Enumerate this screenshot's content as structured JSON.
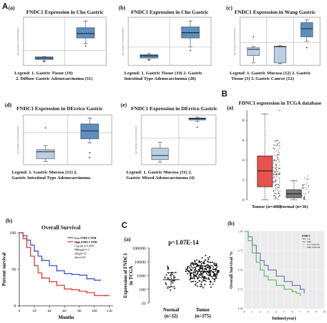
{
  "figure": {
    "A_letter": "A",
    "B_letter": "B",
    "C_letter": "C"
  },
  "oncomine_ylabel": "log2 median-centered intensity",
  "panels": {
    "a": {
      "sub": "(a)",
      "title": "FNDC1 Expression in Cho Gastric",
      "legend": [
        "Legend:  1. Gastric Tissue (19)",
        "2. Diffuse Gastric Adenocarcinoma (31)"
      ]
    },
    "b": {
      "sub": "(b)",
      "title": "FNDC1 Expression in Cho Gastric",
      "legend": [
        "Legend:  1. Gastric Tissue (19)   2. Gastric",
        "Intestinal Type Adenocarcinoma (20)"
      ]
    },
    "c": {
      "sub": "(c)",
      "title": "FNDC1 Expression in Wang Gastric",
      "legend": [
        "Legend:  1. Gastric Mucosa (12)   2. Gastric",
        "Tissue (3)   3. Gastric Cancer (12)"
      ]
    },
    "d": {
      "sub": "(d)",
      "title": "FNDC1 Expression in DErrico Gastric",
      "legend": [
        "Legend:  1. Gastric Mucosa (31)   2.",
        "Gastric Intestinal Type Adenocarcinoma"
      ]
    },
    "e": {
      "sub": "(e)",
      "title": "FNDC1 Expression in DErrico Gastric",
      "legend": [
        "Legend:  1. Gastric Mucosa (31)   2.",
        "Gastric Mixed Adenocarcinoma (4)"
      ]
    },
    "Ba": {
      "sub": "(a)",
      "title": "FDNC1 expression in TCGA database"
    },
    "Ab": {
      "sub": "(b)",
      "title": "Overall Survival",
      "xlabel": "Months",
      "ylabel": "Percent survival",
      "legend": [
        "Low FNDC1 TPM",
        "High FNDC1 TPM",
        "Logrank p=0.0058",
        "HR(high)=1.5",
        "n(high)=93",
        "n(low)=93"
      ]
    },
    "Ca": {
      "sub": "(a)",
      "annotation": "p=1.07E-14",
      "ylabel": "Expression of FNDC1 in TCGA"
    },
    "Cb": {
      "sub": "(b)",
      "xlabel": "futime(year)",
      "ylabel": "Overall Survival %",
      "legend_title": "FNDC1",
      "legend": [
        "low",
        "high",
        "low censored",
        "high censored"
      ]
    }
  },
  "colors": {
    "oncomine_box": "#5b8fbf",
    "oncomine_box_light": "#b8cfe4",
    "tcga_tumor": "#e8524d",
    "tcga_normal": "#777777",
    "km_low": "#2b3fd8",
    "km_high": "#e02222",
    "cb_low": "#4866b8",
    "cb_high": "#41b94b",
    "cb_bg": "#ebebeb"
  },
  "chart_data": [
    {
      "id": "Aa",
      "type": "box",
      "title": "FNDC1 Expression in Cho Gastric",
      "categories": [
        "1",
        "2"
      ],
      "boxes": [
        {
          "min": -1.4,
          "q1": -1.2,
          "median": -1.0,
          "q3": -0.85,
          "max": -0.8,
          "outliers": [
            -1.5
          ],
          "shade": "dark"
        },
        {
          "min": 0.9,
          "q1": 1.7,
          "median": 2.3,
          "q3": 3.1,
          "max": 4.0,
          "outliers": [
            0.6
          ],
          "shade": "dark"
        }
      ],
      "ylim": [
        -2,
        4.5
      ]
    },
    {
      "id": "Ab_oncomine",
      "type": "box",
      "title": "FNDC1 Expression in Cho Gastric",
      "categories": [
        "1",
        "2"
      ],
      "boxes": [
        {
          "min": -1.7,
          "q1": -1.5,
          "median": -1.2,
          "q3": -1.05,
          "max": -0.9,
          "outliers": [
            -1.8
          ],
          "shade": "dark"
        },
        {
          "min": 0.0,
          "q1": 1.2,
          "median": 1.9,
          "q3": 2.7,
          "max": 3.5,
          "outliers": [
            -0.5
          ],
          "shade": "dark"
        }
      ],
      "ylim": [
        -2.5,
        4
      ]
    },
    {
      "id": "Ac",
      "type": "box",
      "title": "FNDC1 Expression in Wang Gastric",
      "categories": [
        "1",
        "2",
        "3"
      ],
      "boxes": [
        {
          "min": -2.3,
          "q1": -1.5,
          "median": -0.8,
          "q3": -0.6,
          "max": -0.5,
          "outliers": [
            0.6
          ],
          "shade": "light"
        },
        {
          "min": -2.4,
          "q1": -2.3,
          "median": -0.5,
          "q3": -0.45,
          "max": -0.4,
          "outliers": [],
          "shade": "light"
        },
        {
          "min": 0.1,
          "q1": 0.6,
          "median": 1.5,
          "q3": 2.2,
          "max": 2.5,
          "outliers": [
            -0.6
          ],
          "shade": "dark"
        }
      ],
      "ylim": [
        -2.6,
        2.8
      ]
    },
    {
      "id": "Ad",
      "type": "box",
      "title": "FNDC1 Expression in DErrico Gastric",
      "categories": [
        "1",
        "2"
      ],
      "boxes": [
        {
          "min": -2.9,
          "q1": -2.6,
          "median": -1.9,
          "q3": -1.7,
          "max": -1.3,
          "outliers": [
            0.5
          ],
          "shade": "light"
        },
        {
          "min": -1.0,
          "q1": -0.6,
          "median": 0.2,
          "q3": 0.9,
          "max": 1.5,
          "outliers": [
            -2.0,
            -2.5
          ],
          "shade": "dark"
        }
      ],
      "ylim": [
        -3.2,
        1.8
      ]
    },
    {
      "id": "Ae",
      "type": "box",
      "title": "FNDC1 Expression in DErrico Gastric",
      "categories": [
        "1",
        "2"
      ],
      "boxes": [
        {
          "min": -2.9,
          "q1": -2.6,
          "median": -2.1,
          "q3": -1.2,
          "max": -0.5,
          "outliers": [],
          "shade": "light"
        },
        {
          "min": 2.0,
          "q1": 2.2,
          "median": 2.35,
          "q3": 2.45,
          "max": 2.55,
          "outliers": [
            1.3
          ],
          "shade": "dark"
        }
      ],
      "ylim": [
        -3.2,
        2.8
      ]
    },
    {
      "id": "Ba",
      "type": "box",
      "title": "FDNC1 expression in TCGA database",
      "categories": [
        "Tumor\n(n=408)",
        "Normal\n(n=36)"
      ],
      "yticks": [
        0,
        2,
        4,
        6,
        8
      ],
      "ylim": [
        0,
        9
      ],
      "boxes": [
        {
          "min": 0.0,
          "q1": 1.3,
          "median": 2.9,
          "q3": 4.4,
          "max": 8.6,
          "color": "#e8524d"
        },
        {
          "min": 0.0,
          "q1": 0.2,
          "median": 0.6,
          "q3": 1.0,
          "max": 1.9,
          "color": "#777777"
        }
      ]
    },
    {
      "id": "Ab",
      "type": "line",
      "title": "Overall Survival",
      "xlabel": "Months",
      "ylabel": "Percent survival",
      "xticks": [
        0,
        20,
        40,
        60,
        80,
        100,
        120
      ],
      "yticks": [
        0,
        50,
        100
      ],
      "xlim": [
        0,
        125
      ],
      "ylim": [
        0,
        100
      ],
      "series": [
        {
          "name": "Low FNDC1 TPM",
          "points": [
            [
              0,
              100
            ],
            [
              5,
              96
            ],
            [
              10,
              90
            ],
            [
              15,
              83
            ],
            [
              20,
              75
            ],
            [
              25,
              68
            ],
            [
              30,
              62
            ],
            [
              40,
              55
            ],
            [
              50,
              48
            ],
            [
              60,
              44
            ],
            [
              70,
              43
            ],
            [
              80,
              42
            ],
            [
              90,
              37
            ],
            [
              100,
              35
            ],
            [
              108,
              35
            ]
          ]
        },
        {
          "name": "High FNDC1 TPM",
          "points": [
            [
              0,
              100
            ],
            [
              5,
              92
            ],
            [
              10,
              80
            ],
            [
              15,
              68
            ],
            [
              20,
              55
            ],
            [
              25,
              45
            ],
            [
              30,
              38
            ],
            [
              40,
              33
            ],
            [
              50,
              28
            ],
            [
              60,
              23
            ],
            [
              70,
              22
            ],
            [
              80,
              20
            ],
            [
              90,
              18
            ],
            [
              100,
              14
            ],
            [
              115,
              14
            ],
            [
              120,
              14
            ]
          ]
        }
      ]
    },
    {
      "id": "Ca",
      "type": "scatter",
      "ylabel": "Expression of FNDC1 in TCGA",
      "annotation": "p=1.07E-14",
      "categories": [
        "Normal\n(n=32)",
        "Tumor\n(n=375)"
      ],
      "yscale": "log",
      "yticks": [
        10,
        100,
        1000,
        10000,
        100000
      ],
      "ylim": [
        10,
        100000
      ],
      "groups": [
        {
          "name": "Normal",
          "n": 32,
          "mean": 500,
          "sd_low": 150,
          "sd_high": 1600
        },
        {
          "name": "Tumor",
          "n": 375,
          "mean": 2000,
          "sd_low": 700,
          "sd_high": 5000
        }
      ]
    },
    {
      "id": "Cb",
      "type": "line",
      "xlabel": "futime(year)",
      "ylabel": "Overall Survival %",
      "xticks": [
        0,
        1,
        2,
        3,
        4,
        5,
        6,
        7,
        8,
        9,
        10
      ],
      "yticks": [
        0.0,
        0.25,
        0.5,
        0.75,
        1.0
      ],
      "xlim": [
        0,
        10
      ],
      "ylim": [
        0,
        1
      ],
      "series": [
        {
          "name": "low",
          "points": [
            [
              0,
              1
            ],
            [
              0.5,
              0.93
            ],
            [
              1,
              0.82
            ],
            [
              1.5,
              0.72
            ],
            [
              2,
              0.62
            ],
            [
              2.5,
              0.56
            ],
            [
              3,
              0.5
            ],
            [
              4,
              0.42
            ],
            [
              5,
              0.35
            ],
            [
              6,
              0.3
            ],
            [
              7,
              0.25
            ],
            [
              7.5,
              0.2
            ]
          ]
        },
        {
          "name": "high",
          "points": [
            [
              0,
              1
            ],
            [
              0.5,
              0.88
            ],
            [
              1,
              0.72
            ],
            [
              1.5,
              0.6
            ],
            [
              2,
              0.5
            ],
            [
              2.5,
              0.42
            ],
            [
              3,
              0.37
            ],
            [
              4,
              0.3
            ],
            [
              5,
              0.25
            ],
            [
              6,
              0.22
            ],
            [
              6.5,
              0.2
            ],
            [
              7,
              0.17
            ]
          ]
        }
      ]
    }
  ]
}
